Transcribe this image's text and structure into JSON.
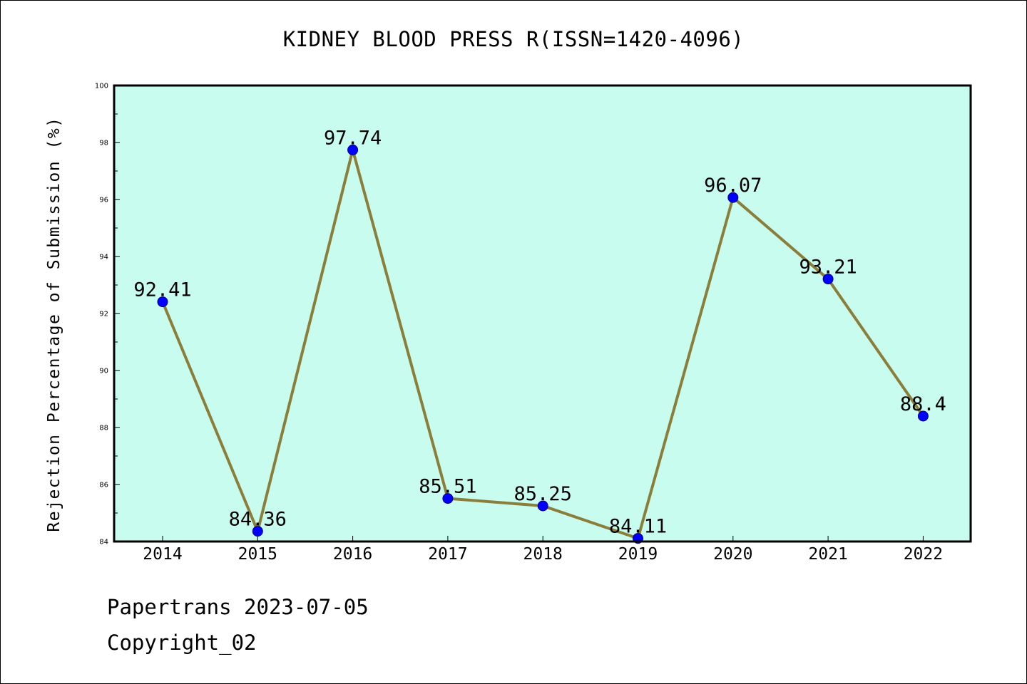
{
  "chart_data": {
    "type": "line",
    "title": "KIDNEY BLOOD PRESS R(ISSN=1420-4096)",
    "xlabel": "",
    "ylabel": "Rejection Percentage of Submission (%)",
    "categories": [
      "2014",
      "2015",
      "2016",
      "2017",
      "2018",
      "2019",
      "2020",
      "2021",
      "2022"
    ],
    "series": [
      {
        "values": [
          92.41,
          84.36,
          97.74,
          85.51,
          85.25,
          84.11,
          96.07,
          93.21,
          88.4
        ],
        "data_labels": [
          "92.41",
          "84.36",
          "97.74",
          "85.51",
          "85.25",
          "84.11",
          "96.07",
          "93.21",
          "88.4"
        ]
      }
    ],
    "ylim": [
      84,
      100
    ],
    "y_ticks": [
      "84",
      "86",
      "88",
      "90",
      "92",
      "94",
      "96",
      "98",
      "100"
    ],
    "grid": false,
    "legend": "none",
    "colors": {
      "plot_background": "#c8fcee",
      "line": "#8b7e3a",
      "marker": "#0000ff",
      "axis": "#000000"
    }
  },
  "footer": {
    "source_date": "Papertrans 2023-07-05",
    "copyright": "Copyright_02"
  }
}
